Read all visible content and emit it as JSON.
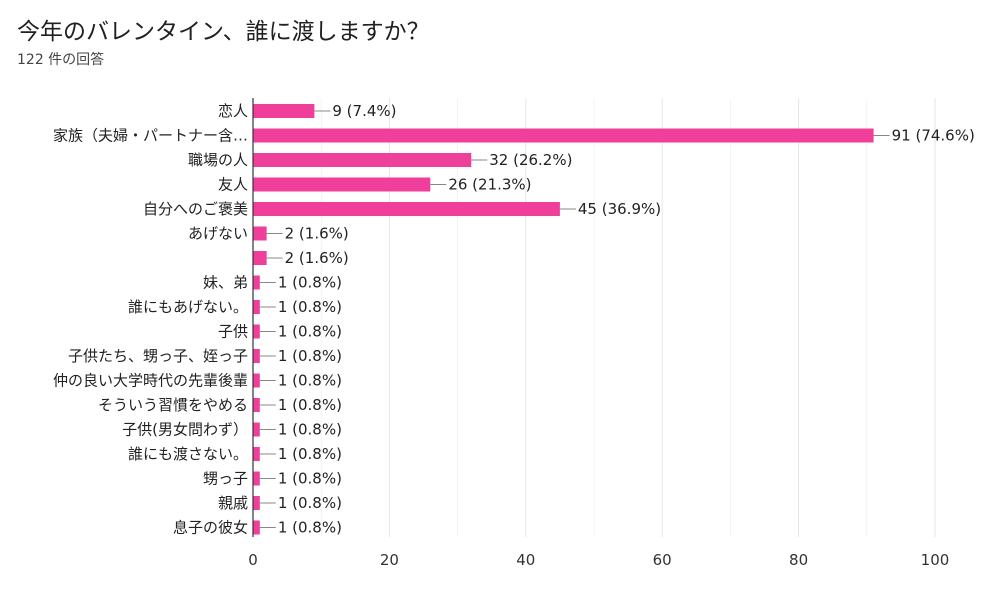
{
  "title": "今年のバレンタイン、誰に渡しますか？",
  "subtitle": "122 件の回答",
  "chart_data": {
    "type": "bar",
    "orientation": "horizontal",
    "categories": [
      "恋人",
      "家族（夫婦・パートナー含…",
      "職場の人",
      "友人",
      "自分へのご褒美",
      "あげない",
      "",
      "妹、弟",
      "誰にもあげない。",
      "子供",
      "子供たち、甥っ子、姪っ子",
      "仲の良い大学時代の先輩後輩",
      "そういう習慣をやめる",
      "子供(男女問わず）",
      "誰にも渡さない。",
      "甥っ子",
      "親戚",
      "息子の彼女"
    ],
    "values": [
      9,
      91,
      32,
      26,
      45,
      2,
      2,
      1,
      1,
      1,
      1,
      1,
      1,
      1,
      1,
      1,
      1,
      1
    ],
    "data_labels": [
      "9 (7.4%)",
      "91 (74.6%)",
      "32 (26.2%)",
      "26 (21.3%)",
      "45 (36.9%)",
      "2 (1.6%)",
      "2 (1.6%)",
      "1 (0.8%)",
      "1 (0.8%)",
      "1 (0.8%)",
      "1 (0.8%)",
      "1 (0.8%)",
      "1 (0.8%)",
      "1 (0.8%)",
      "1 (0.8%)",
      "1 (0.8%)",
      "1 (0.8%)",
      "1 (0.8%)"
    ],
    "xlim": [
      0,
      100
    ],
    "xticks": [
      0,
      20,
      40,
      60,
      80,
      100
    ],
    "grid": true,
    "bar_color": "#ef3f9a"
  }
}
